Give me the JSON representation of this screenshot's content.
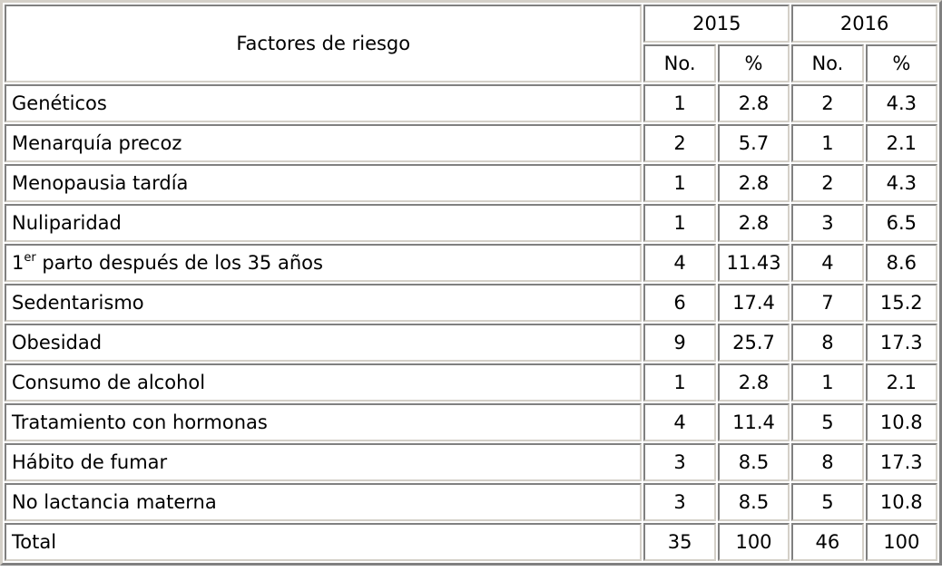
{
  "colors": {
    "border_light": "#d4d0c8",
    "border_dark": "#808080",
    "cell_bg": "#ffffff",
    "text": "#000000"
  },
  "table": {
    "header": {
      "factor_label": "Factores de riesgo",
      "year1": "2015",
      "year2": "2016",
      "no_label": "No.",
      "pct_label": "%"
    },
    "rows": [
      {
        "factor": "Genéticos",
        "y2015_no": "1",
        "y2015_pct": "2.8",
        "y2016_no": "2",
        "y2016_pct": "4.3"
      },
      {
        "factor": "Menarquía precoz",
        "y2015_no": "2",
        "y2015_pct": "5.7",
        "y2016_no": "1",
        "y2016_pct": "2.1"
      },
      {
        "factor": "Menopausia tardía",
        "y2015_no": "1",
        "y2015_pct": "2.8",
        "y2016_no": "2",
        "y2016_pct": "4.3"
      },
      {
        "factor": "Nuliparidad",
        "y2015_no": "1",
        "y2015_pct": "2.8",
        "y2016_no": "3",
        "y2016_pct": "6.5"
      },
      {
        "factor_prefix": "1",
        "factor_sup": "er",
        "factor_rest": " parto después de los 35 años",
        "y2015_no": "4",
        "y2015_pct": "11.43",
        "y2016_no": "4",
        "y2016_pct": "8.6"
      },
      {
        "factor": "Sedentarismo",
        "y2015_no": "6",
        "y2015_pct": "17.4",
        "y2016_no": "7",
        "y2016_pct": "15.2"
      },
      {
        "factor": "Obesidad",
        "y2015_no": "9",
        "y2015_pct": "25.7",
        "y2016_no": "8",
        "y2016_pct": "17.3"
      },
      {
        "factor": "Consumo de alcohol",
        "y2015_no": "1",
        "y2015_pct": "2.8",
        "y2016_no": "1",
        "y2016_pct": "2.1"
      },
      {
        "factor": "Tratamiento con hormonas",
        "y2015_no": "4",
        "y2015_pct": "11.4",
        "y2016_no": "5",
        "y2016_pct": "10.8"
      },
      {
        "factor": "Hábito de fumar",
        "y2015_no": "3",
        "y2015_pct": "8.5",
        "y2016_no": "8",
        "y2016_pct": "17.3"
      },
      {
        "factor": "No lactancia materna",
        "y2015_no": "3",
        "y2015_pct": "8.5",
        "y2016_no": "5",
        "y2016_pct": "10.8"
      },
      {
        "factor": "Total",
        "y2015_no": "35",
        "y2015_pct": "100",
        "y2016_no": "46",
        "y2016_pct": "100"
      }
    ]
  }
}
